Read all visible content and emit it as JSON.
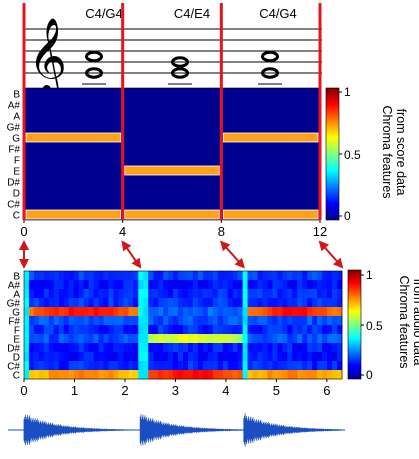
{
  "score": {
    "chord_labels": [
      "C4/G4",
      "C4/E4",
      "C4/G4"
    ],
    "clef": "treble"
  },
  "pitch_labels": [
    "B",
    "A#",
    "A",
    "G#",
    "G",
    "F#",
    "F",
    "E",
    "D#",
    "D",
    "C#",
    "C"
  ],
  "score_time_ticks": [
    "0",
    "4",
    "8",
    "12"
  ],
  "audio_time_ticks": [
    "0",
    "1",
    "2",
    "3",
    "4",
    "5",
    "6"
  ],
  "colorbar_ticks": [
    "1",
    "0.5",
    "0"
  ],
  "side_labels": {
    "score": [
      "Chroma features",
      "from score data"
    ],
    "audio": [
      "Chroma features",
      "from audio data"
    ]
  },
  "colors": {
    "sync_line": "#e8141c",
    "arrow": "#d01818",
    "waveform": "#1a4fc4",
    "low": "#00008f",
    "active": "#ffa21a"
  },
  "chart_data": [
    {
      "type": "heatmap",
      "name": "score-chroma",
      "x_range": [
        0,
        12
      ],
      "rows": [
        "B",
        "A#",
        "A",
        "G#",
        "G",
        "F#",
        "F",
        "E",
        "D#",
        "D",
        "C#",
        "C"
      ],
      "segments": [
        {
          "x": [
            0,
            4
          ],
          "active": [
            "G",
            "C"
          ]
        },
        {
          "x": [
            4,
            8
          ],
          "active": [
            "E",
            "C"
          ]
        },
        {
          "x": [
            8,
            12
          ],
          "active": [
            "G",
            "C"
          ]
        }
      ],
      "active_value": 0.75,
      "color_range": [
        0,
        1
      ]
    },
    {
      "type": "heatmap",
      "name": "audio-chroma",
      "x_range": [
        0,
        6.3
      ],
      "rows": [
        "B",
        "A#",
        "A",
        "G#",
        "G",
        "F#",
        "F",
        "E",
        "D#",
        "D",
        "C#",
        "C"
      ],
      "segments": [
        {
          "x": [
            0,
            2.3
          ],
          "strong": [
            "G",
            "C"
          ]
        },
        {
          "x": [
            2.3,
            4.35
          ],
          "strong": [
            "E",
            "C"
          ]
        },
        {
          "x": [
            4.35,
            6.3
          ],
          "strong": [
            "G",
            "C"
          ]
        }
      ],
      "color_range": [
        0,
        1
      ]
    }
  ]
}
